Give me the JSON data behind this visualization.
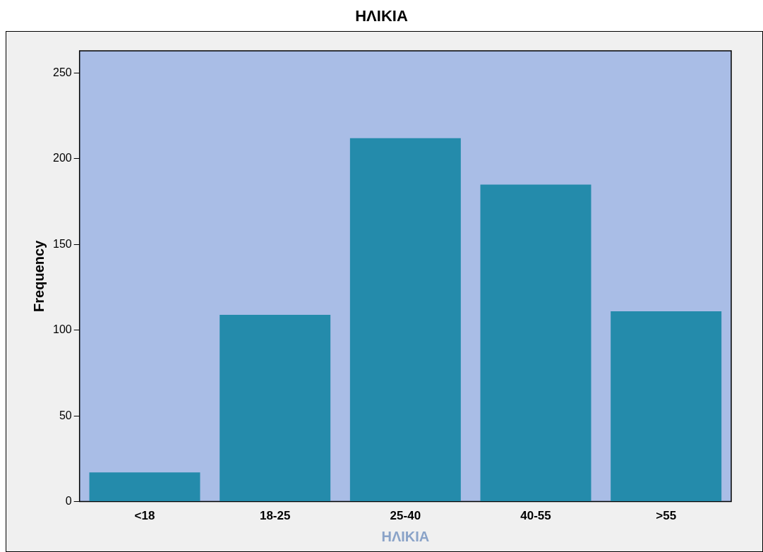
{
  "chart_data": {
    "type": "bar",
    "title": "ΗΛΙΚΙΑ",
    "xlabel": "ΗΛΙΚΙΑ",
    "ylabel": "Frequency",
    "categories": [
      "<18",
      "18-25",
      "25-40",
      "40-55",
      ">55"
    ],
    "values": [
      17,
      109,
      212,
      185,
      111
    ],
    "color": "#248bab",
    "ylim": [
      0,
      263
    ],
    "yticks": [
      0,
      50,
      100,
      150,
      200,
      250
    ],
    "grid": false,
    "legend": false
  }
}
